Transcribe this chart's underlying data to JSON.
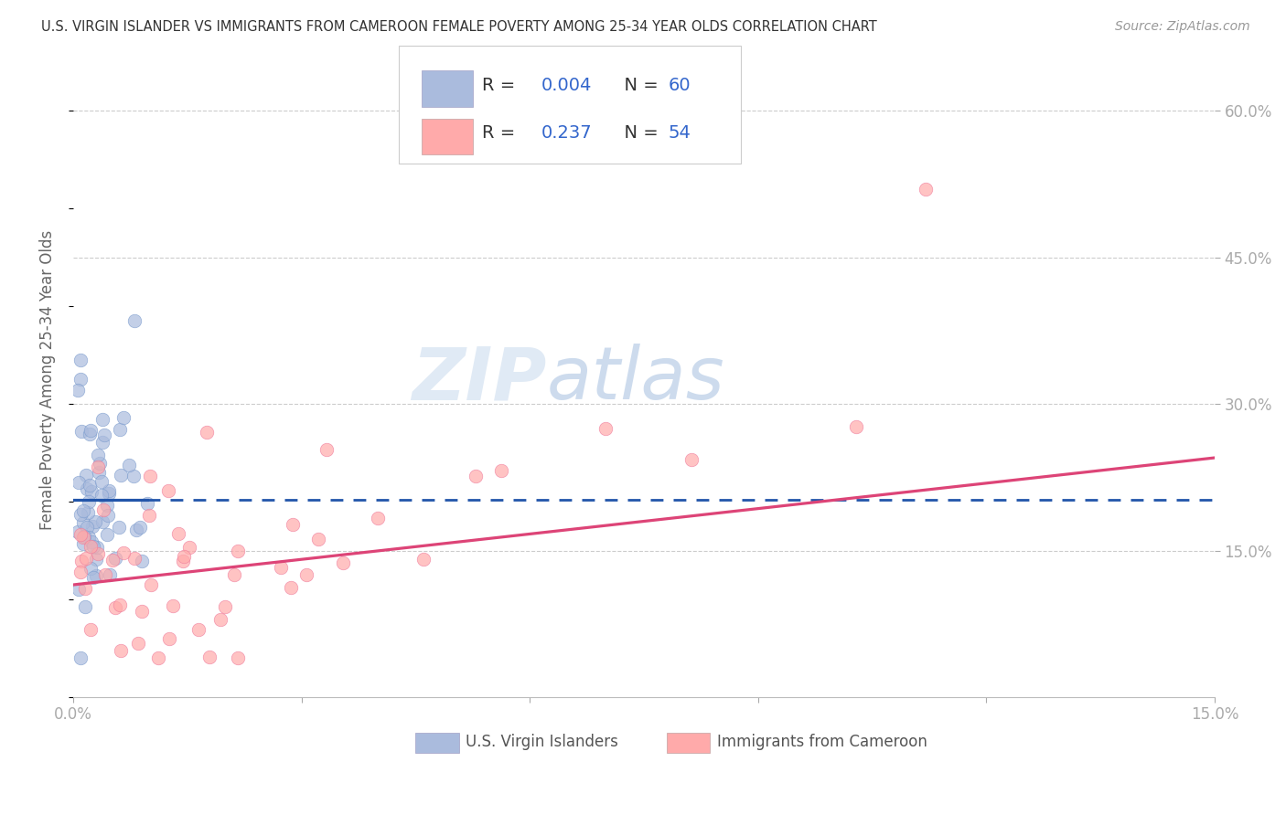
{
  "title": "U.S. VIRGIN ISLANDER VS IMMIGRANTS FROM CAMEROON FEMALE POVERTY AMONG 25-34 YEAR OLDS CORRELATION CHART",
  "source": "Source: ZipAtlas.com",
  "ylabel": "Female Poverty Among 25-34 Year Olds",
  "xlim": [
    0.0,
    0.15
  ],
  "ylim": [
    0.0,
    0.65
  ],
  "background_color": "#ffffff",
  "grid_color": "#cccccc",
  "watermark_zip": "ZIP",
  "watermark_atlas": "atlas",
  "blue_color": "#aabbdd",
  "pink_color": "#ffaaaa",
  "blue_line_color": "#2255aa",
  "pink_line_color": "#dd4477",
  "blue_edge": "#7799cc",
  "pink_edge": "#ee7799",
  "R_blue": 0.004,
  "N_blue": 60,
  "R_pink": 0.237,
  "N_pink": 54,
  "legend_label_blue": "U.S. Virgin Islanders",
  "legend_label_pink": "Immigrants from Cameroon",
  "legend_r_color": "#333333",
  "legend_val_color": "#3366cc",
  "right_tick_color": "#4499ff"
}
